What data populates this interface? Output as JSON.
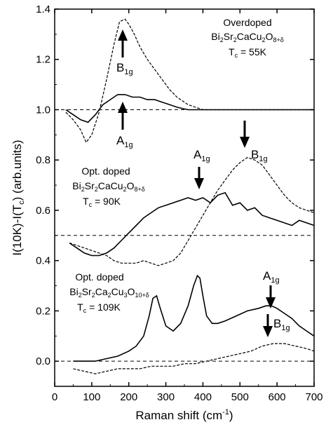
{
  "chart_data": {
    "type": "line",
    "title": "",
    "xlabel": "Raman shift (cm",
    "xlabel_sup": "-1",
    "xlabel_tail": ")",
    "ylabel": "I(10K)-I(T",
    "ylabel_sub": "c",
    "ylabel_tail": ") (arb.units)",
    "xlim": [
      0,
      700
    ],
    "ylim": [
      -0.1,
      1.4
    ],
    "xticks": [
      "0",
      "100",
      "200",
      "300",
      "400",
      "500",
      "600",
      "700"
    ],
    "yticks": [
      "0.0",
      "0.2",
      "0.4",
      "0.6",
      "0.8",
      "1.0",
      "1.2",
      "1.4"
    ],
    "xtick_values": [
      0,
      100,
      200,
      300,
      400,
      500,
      600,
      700
    ],
    "ytick_values": [
      0.0,
      0.2,
      0.4,
      0.6,
      0.8,
      1.0,
      1.2,
      1.4
    ],
    "grid": false,
    "baselines": [
      1.0,
      0.5,
      0.0
    ],
    "series": [
      {
        "style": "solid",
        "x": [
          30,
          50,
          70,
          90,
          110,
          130,
          150,
          170,
          190,
          210,
          230,
          250,
          270,
          290,
          310,
          330,
          360,
          400,
          450,
          500,
          550,
          600,
          650,
          700
        ],
        "values": [
          1.0,
          0.98,
          0.96,
          0.95,
          0.98,
          1.02,
          1.04,
          1.06,
          1.06,
          1.05,
          1.05,
          1.04,
          1.04,
          1.03,
          1.02,
          1.01,
          1.0,
          1.0,
          1.0,
          1.0,
          1.0,
          1.0,
          1.0,
          1.0
        ]
      },
      {
        "style": "dashed",
        "x": [
          30,
          50,
          70,
          85,
          100,
          120,
          140,
          160,
          175,
          190,
          200,
          215,
          230,
          250,
          270,
          290,
          310,
          330,
          360,
          400,
          450,
          500,
          550,
          600,
          650,
          700
        ],
        "values": [
          0.99,
          0.96,
          0.92,
          0.87,
          0.9,
          0.99,
          1.12,
          1.26,
          1.35,
          1.36,
          1.34,
          1.3,
          1.25,
          1.2,
          1.16,
          1.12,
          1.08,
          1.05,
          1.02,
          1.0,
          1.0,
          1.0,
          1.0,
          1.0,
          1.0,
          1.0
        ]
      },
      {
        "style": "solid",
        "x": [
          40,
          60,
          80,
          100,
          120,
          140,
          160,
          180,
          200,
          220,
          240,
          260,
          280,
          300,
          320,
          340,
          360,
          380,
          400,
          420,
          440,
          460,
          480,
          500,
          520,
          540,
          560,
          580,
          600,
          620,
          640,
          660,
          680,
          700
        ],
        "values": [
          0.47,
          0.45,
          0.43,
          0.42,
          0.42,
          0.43,
          0.45,
          0.48,
          0.51,
          0.54,
          0.57,
          0.59,
          0.61,
          0.62,
          0.63,
          0.64,
          0.65,
          0.64,
          0.65,
          0.63,
          0.66,
          0.67,
          0.62,
          0.63,
          0.6,
          0.61,
          0.58,
          0.57,
          0.56,
          0.55,
          0.54,
          0.56,
          0.55,
          0.54
        ]
      },
      {
        "style": "dashed",
        "x": [
          40,
          60,
          80,
          100,
          120,
          140,
          160,
          180,
          200,
          220,
          240,
          260,
          280,
          300,
          320,
          340,
          360,
          380,
          400,
          420,
          440,
          460,
          480,
          500,
          520,
          540,
          560,
          580,
          600,
          620,
          640,
          660,
          680,
          700
        ],
        "values": [
          0.47,
          0.46,
          0.45,
          0.44,
          0.43,
          0.42,
          0.4,
          0.39,
          0.39,
          0.39,
          0.4,
          0.39,
          0.38,
          0.39,
          0.4,
          0.43,
          0.48,
          0.53,
          0.58,
          0.63,
          0.68,
          0.72,
          0.76,
          0.79,
          0.81,
          0.8,
          0.78,
          0.74,
          0.7,
          0.66,
          0.63,
          0.61,
          0.6,
          0.59
        ]
      },
      {
        "style": "solid",
        "x": [
          50,
          80,
          110,
          140,
          170,
          200,
          220,
          240,
          255,
          265,
          275,
          285,
          300,
          320,
          340,
          360,
          375,
          385,
          392,
          400,
          410,
          425,
          440,
          460,
          490,
          520,
          550,
          570,
          585,
          600,
          620,
          640,
          660,
          680,
          700
        ],
        "values": [
          0.0,
          0.0,
          0.0,
          0.01,
          0.02,
          0.04,
          0.06,
          0.1,
          0.18,
          0.25,
          0.26,
          0.21,
          0.14,
          0.12,
          0.15,
          0.22,
          0.3,
          0.34,
          0.33,
          0.26,
          0.18,
          0.15,
          0.15,
          0.16,
          0.18,
          0.2,
          0.21,
          0.22,
          0.22,
          0.21,
          0.19,
          0.17,
          0.14,
          0.12,
          0.1
        ]
      },
      {
        "style": "dashed",
        "x": [
          50,
          80,
          110,
          140,
          170,
          200,
          230,
          260,
          290,
          320,
          350,
          380,
          410,
          440,
          470,
          500,
          530,
          560,
          590,
          620,
          650,
          680,
          700
        ],
        "values": [
          -0.03,
          -0.04,
          -0.05,
          -0.04,
          -0.03,
          -0.03,
          -0.03,
          -0.02,
          -0.02,
          -0.02,
          -0.01,
          -0.01,
          0.0,
          0.01,
          0.02,
          0.03,
          0.04,
          0.06,
          0.07,
          0.07,
          0.06,
          0.05,
          0.04
        ]
      }
    ],
    "annotations": [
      {
        "id": "ann-overdoped",
        "lines": [
          "Overdoped",
          "Bi2Sr2CaCu2O8+δ",
          "Tc = 55K"
        ]
      },
      {
        "id": "ann-optdoped-2212",
        "lines": [
          "Opt. doped",
          "Bi2Sr2CaCu2O8+δ",
          "Tc = 90K"
        ]
      },
      {
        "id": "ann-optdoped-2223",
        "lines": [
          "Opt. doped",
          "Bi2Sr2Ca2Cu3O10+δ",
          "Tc = 109K"
        ]
      }
    ],
    "arrow_labels": [
      "B1g",
      "A1g",
      "A1g",
      "B1g",
      "A1g",
      "B1g"
    ]
  }
}
